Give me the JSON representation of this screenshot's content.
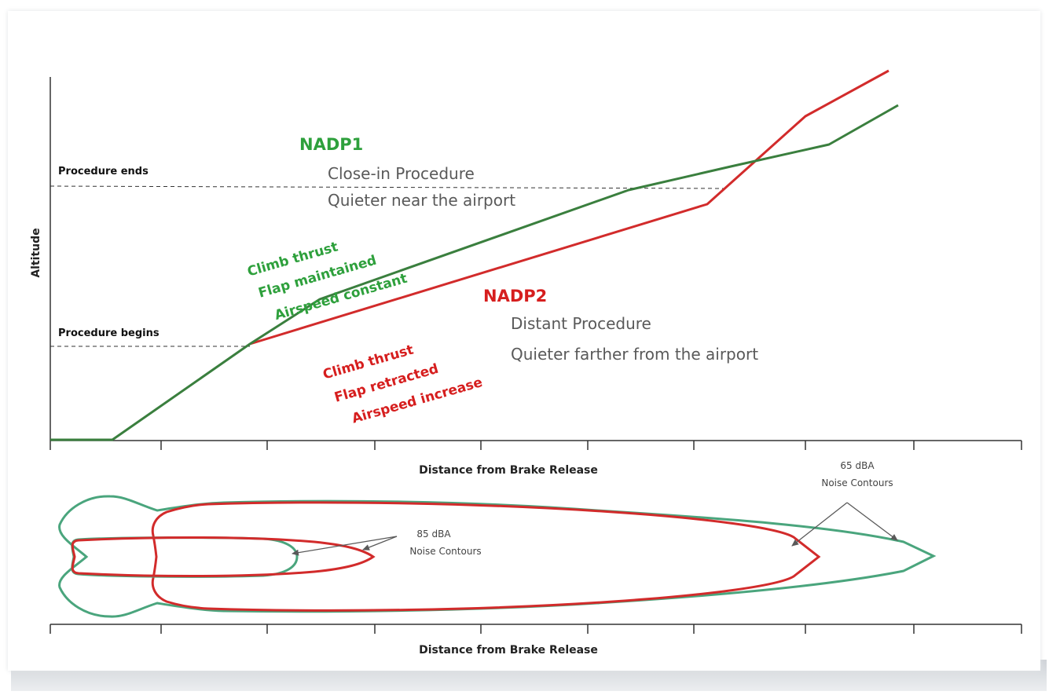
{
  "colors": {
    "nadp1": "#3a7f3e",
    "nadp1_text": "#2ea03c",
    "nadp1_contour": "#4aa57d",
    "nadp2": "#d22b2b",
    "nadp2_text": "#d61e1e",
    "axis": "#333333",
    "annotation": "#595959"
  },
  "profile": {
    "y_axis_label": "Altitude",
    "x_axis_label": "Distance from Brake Release",
    "procedure_ends": "Procedure ends",
    "procedure_begins": "Procedure begins"
  },
  "nadp1": {
    "name": "NADP1",
    "description": [
      "Close-in Procedure",
      "Quieter near the airport"
    ],
    "settings": [
      "Climb thrust",
      "Flap maintained",
      "Airspeed constant"
    ]
  },
  "nadp2": {
    "name": "NADP2",
    "description": [
      "Distant Procedure",
      "Quieter farther from the airport"
    ],
    "settings": [
      "Climb thrust",
      "Flap retracted",
      "Airspeed increase"
    ]
  },
  "contours": {
    "x_axis_label": "Distance from Brake Release",
    "inner_label": [
      "85 dBA",
      "Noise Contours"
    ],
    "outer_label": [
      "65 dBA",
      "Noise Contours"
    ]
  }
}
